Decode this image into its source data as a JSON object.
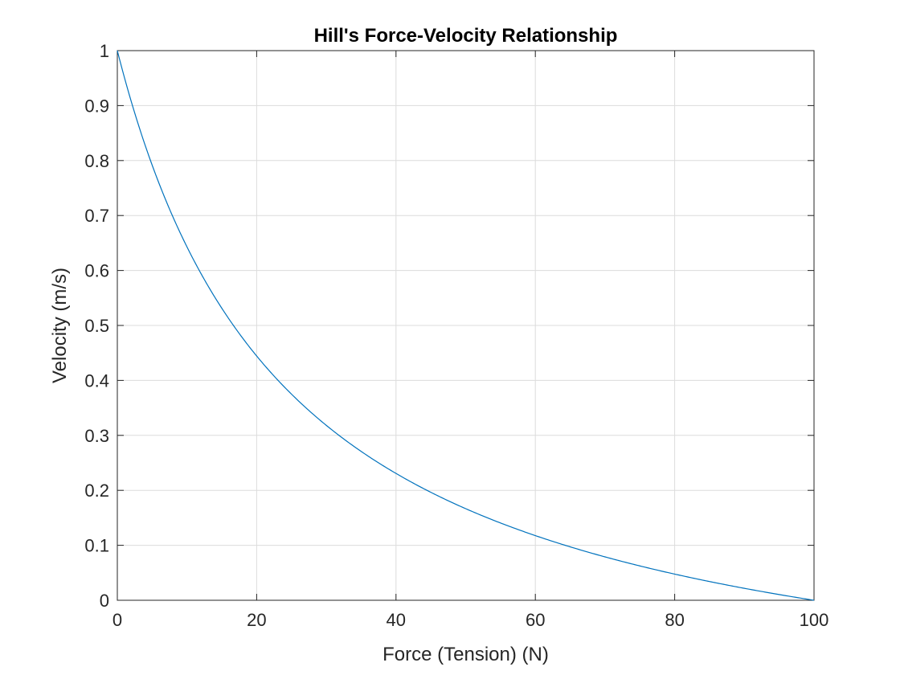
{
  "chart_data": {
    "type": "line",
    "title": "Hill's Force-Velocity Relationship",
    "xlabel": "Force (Tension) (N)",
    "ylabel": "Velocity (m/s)",
    "xlim": [
      0,
      100
    ],
    "ylim": [
      0,
      1
    ],
    "xticks": [
      0,
      20,
      40,
      60,
      80,
      100
    ],
    "yticks": [
      0,
      0.1,
      0.2,
      0.3,
      0.4,
      0.5,
      0.6,
      0.7,
      0.8,
      0.9,
      1
    ],
    "grid": true,
    "line_color": "#0072bd",
    "series": [
      {
        "x": [
          0,
          2.5,
          5,
          7.5,
          10,
          12.5,
          15,
          17.5,
          20,
          22.5,
          25,
          27.5,
          30,
          32.5,
          35,
          37.5,
          40,
          42.5,
          45,
          47.5,
          50,
          52.5,
          55,
          57.5,
          60,
          62.5,
          65,
          67.5,
          70,
          72.5,
          75,
          77.5,
          80,
          82.5,
          85,
          87.5,
          90,
          92.5,
          95,
          97.5,
          100
        ],
        "y": [
          1.0,
          0.8824,
          0.7826,
          0.697,
          0.6226,
          0.5573,
          0.5,
          0.449,
          0.4,
          0.3602,
          0.3226,
          0.2883,
          0.2593,
          0.2321,
          0.2069,
          0.1833,
          0.2,
          0.1818,
          0.1644,
          0.1481,
          0.1429,
          0.1271,
          0.1172,
          0.1078,
          0.1,
          0.091,
          0.0825,
          0.0745,
          0.0667,
          0.0594,
          0.0526,
          0.046,
          0.04,
          0.034,
          0.0284,
          0.023,
          0.018,
          0.0131,
          0.0085,
          0.0041,
          0.0
        ]
      }
    ]
  }
}
